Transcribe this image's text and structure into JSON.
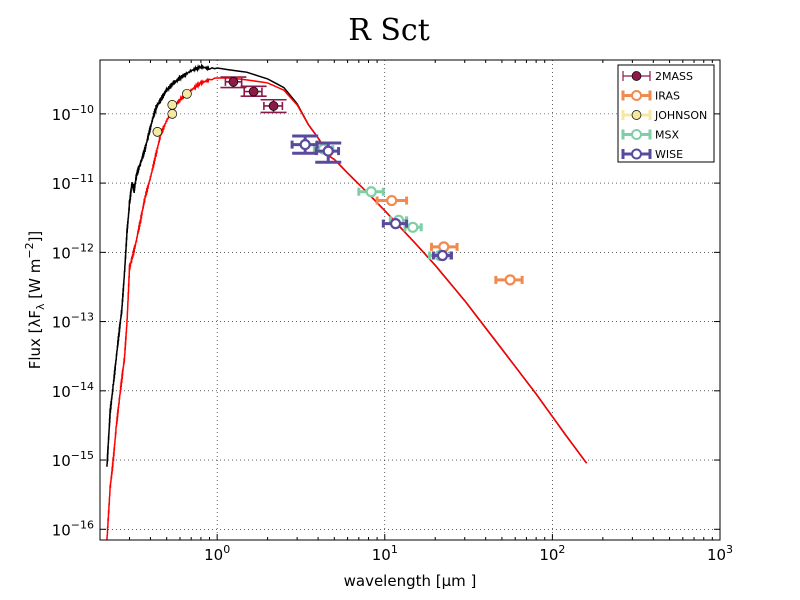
{
  "chart_data": {
    "type": "scatter",
    "title": "R Sct",
    "xlabel": "wavelength [μm ]",
    "ylabel_text": "Flux [λF",
    "ylabel_sub": "λ",
    "ylabel_units": " [W  m",
    "ylabel_sup": "−2",
    "ylabel_end": "]]",
    "x_scale": "log",
    "y_scale": "log",
    "xlim": [
      0.2,
      1000
    ],
    "ylim": [
      7e-17,
      6e-10
    ],
    "grid": true,
    "legend_position": "top-right",
    "x_ticks": [
      {
        "value": 1,
        "base": "10",
        "exp": "0"
      },
      {
        "value": 10,
        "base": "10",
        "exp": "1"
      },
      {
        "value": 100,
        "base": "10",
        "exp": "2"
      },
      {
        "value": 1000,
        "base": "10",
        "exp": "3"
      }
    ],
    "y_ticks": [
      {
        "value": 1e-16,
        "base": "10",
        "exp": "−16"
      },
      {
        "value": 1e-15,
        "base": "10",
        "exp": "−15"
      },
      {
        "value": 1e-14,
        "base": "10",
        "exp": "−14"
      },
      {
        "value": 1e-13,
        "base": "10",
        "exp": "−13"
      },
      {
        "value": 1e-12,
        "base": "10",
        "exp": "−12"
      },
      {
        "value": 1e-11,
        "base": "10",
        "exp": "−11"
      },
      {
        "value": 1e-10,
        "base": "10",
        "exp": "−10"
      }
    ],
    "model_curves": [
      {
        "name": "model-unreddened",
        "color": "#000000",
        "points": [
          [
            0.22,
            8e-16
          ],
          [
            0.225,
            2e-15
          ],
          [
            0.23,
            5e-15
          ],
          [
            0.24,
            1.2e-14
          ],
          [
            0.25,
            3e-14
          ],
          [
            0.26,
            7e-14
          ],
          [
            0.27,
            1.5e-13
          ],
          [
            0.28,
            5e-13
          ],
          [
            0.29,
            2e-12
          ],
          [
            0.3,
            5e-12
          ],
          [
            0.31,
            1e-11
          ],
          [
            0.32,
            8e-12
          ],
          [
            0.33,
            1.3e-11
          ],
          [
            0.35,
            2e-11
          ],
          [
            0.37,
            3e-11
          ],
          [
            0.39,
            5e-11
          ],
          [
            0.41,
            8e-11
          ],
          [
            0.43,
            1.2e-10
          ],
          [
            0.46,
            1.6e-10
          ],
          [
            0.5,
            2.2e-10
          ],
          [
            0.55,
            2.8e-10
          ],
          [
            0.6,
            3.3e-10
          ],
          [
            0.7,
            4.2e-10
          ],
          [
            0.8,
            4.8e-10
          ],
          [
            0.9,
            4.5e-10
          ],
          [
            1.0,
            4.6e-10
          ],
          [
            1.2,
            4.3e-10
          ],
          [
            1.5,
            4e-10
          ],
          [
            2.0,
            3.2e-10
          ],
          [
            2.5,
            2.4e-10
          ],
          [
            3.0,
            1.4e-10
          ],
          [
            3.5,
            7e-11
          ],
          [
            4.0,
            4.5e-11
          ],
          [
            4.3,
            3.4e-11
          ],
          [
            4.5,
            2.6e-11
          ],
          [
            5.0,
            2.2e-11
          ],
          [
            6.0,
            1.4e-11
          ],
          [
            8.0,
            7e-12
          ],
          [
            10.0,
            4e-12
          ],
          [
            15.0,
            1.4e-12
          ],
          [
            20.0,
            6.5e-13
          ],
          [
            30.0,
            2e-13
          ],
          [
            50.0,
            4e-14
          ],
          [
            80.0,
            9e-15
          ],
          [
            120.0,
            2.3e-15
          ],
          [
            160.0,
            9e-16
          ]
        ]
      },
      {
        "name": "model-reddened",
        "color": "#ff0000",
        "points": [
          [
            0.22,
            7e-17
          ],
          [
            0.23,
            4e-16
          ],
          [
            0.24,
            1e-15
          ],
          [
            0.25,
            3e-15
          ],
          [
            0.26,
            7e-15
          ],
          [
            0.27,
            1.5e-14
          ],
          [
            0.28,
            3e-14
          ],
          [
            0.29,
            1e-13
          ],
          [
            0.3,
            6e-13
          ],
          [
            0.31,
            8e-13
          ],
          [
            0.33,
            1.5e-12
          ],
          [
            0.35,
            3e-12
          ],
          [
            0.37,
            6e-12
          ],
          [
            0.4,
            1.2e-11
          ],
          [
            0.43,
            2.5e-11
          ],
          [
            0.46,
            5e-11
          ],
          [
            0.5,
            8e-11
          ],
          [
            0.55,
            1.2e-10
          ],
          [
            0.6,
            1.6e-10
          ],
          [
            0.7,
            2.2e-10
          ],
          [
            0.8,
            2.8e-10
          ],
          [
            0.9,
            3.1e-10
          ],
          [
            1.0,
            3.3e-10
          ],
          [
            1.2,
            3.3e-10
          ],
          [
            1.5,
            3.1e-10
          ],
          [
            2.0,
            2.8e-10
          ],
          [
            2.5,
            2.2e-10
          ],
          [
            3.0,
            1.35e-10
          ],
          [
            3.5,
            7e-11
          ],
          [
            4.0,
            4.5e-11
          ],
          [
            4.3,
            3.4e-11
          ],
          [
            4.5,
            2.6e-11
          ],
          [
            5.0,
            2.2e-11
          ],
          [
            6.0,
            1.4e-11
          ],
          [
            8.0,
            7e-12
          ],
          [
            10.0,
            4e-12
          ],
          [
            15.0,
            1.4e-12
          ],
          [
            20.0,
            6.5e-13
          ],
          [
            30.0,
            2e-13
          ],
          [
            50.0,
            4e-14
          ],
          [
            80.0,
            9e-15
          ],
          [
            120.0,
            2.3e-15
          ],
          [
            160.0,
            9e-16
          ]
        ]
      }
    ],
    "series": [
      {
        "name": "2MASS",
        "color": "#8b1a4a",
        "filled": true,
        "points": [
          {
            "x": 1.25,
            "y": 2.9e-10,
            "xerr": [
              1.12,
              1.4
            ],
            "yerr": [
              2.4e-10,
              3.4e-10
            ]
          },
          {
            "x": 1.65,
            "y": 2.1e-10,
            "xerr": [
              1.45,
              1.85
            ],
            "yerr": [
              1.8e-10,
              2.5e-10
            ]
          },
          {
            "x": 2.17,
            "y": 1.3e-10,
            "xerr": [
              1.9,
              2.45
            ],
            "yerr": [
              1.05e-10,
              1.6e-10
            ]
          }
        ]
      },
      {
        "name": "IRAS",
        "color": "#f08a50",
        "filled": false,
        "points": [
          {
            "x": 11.0,
            "y": 5.6e-12,
            "xerr": [
              9.0,
              13.5
            ]
          },
          {
            "x": 22.5,
            "y": 1.2e-12,
            "xerr": [
              19.0,
              27.0
            ]
          },
          {
            "x": 56.0,
            "y": 4e-13,
            "xerr": [
              46.0,
              66.0
            ]
          }
        ]
      },
      {
        "name": "JOHNSON",
        "color": "#f5e8a0",
        "filled": true,
        "points": [
          {
            "x": 0.44,
            "y": 5.5e-11
          },
          {
            "x": 0.54,
            "y": 1e-10
          },
          {
            "x": 0.54,
            "y": 1.35e-10
          },
          {
            "x": 0.66,
            "y": 1.95e-10
          }
        ]
      },
      {
        "name": "MSX",
        "color": "#7fcfa6",
        "filled": false,
        "points": [
          {
            "x": 4.3,
            "y": 3.1e-11,
            "xerr": [
              3.8,
              4.9
            ]
          },
          {
            "x": 8.3,
            "y": 7.5e-12,
            "xerr": [
              7.0,
              9.8
            ]
          },
          {
            "x": 12.1,
            "y": 2.9e-12,
            "xerr": [
              10.8,
              13.5
            ]
          },
          {
            "x": 14.7,
            "y": 2.3e-12,
            "xerr": [
              13.2,
              16.5
            ]
          },
          {
            "x": 21.3,
            "y": 9e-13,
            "xerr": [
              18.5,
              24.5
            ]
          }
        ]
      },
      {
        "name": "WISE",
        "color": "#5a4a9e",
        "filled": false,
        "points": [
          {
            "x": 3.35,
            "y": 3.6e-11,
            "xerr": [
              2.8,
              3.95
            ],
            "yerr": [
              2.7e-11,
              4.8e-11
            ]
          },
          {
            "x": 4.6,
            "y": 2.9e-11,
            "xerr": [
              3.9,
              5.3
            ],
            "yerr": [
              2e-11,
              3.8e-11
            ]
          },
          {
            "x": 11.6,
            "y": 2.6e-12,
            "xerr": [
              9.8,
              13.5
            ]
          },
          {
            "x": 22.1,
            "y": 9e-13,
            "xerr": [
              19.5,
              25.0
            ]
          }
        ]
      }
    ]
  }
}
